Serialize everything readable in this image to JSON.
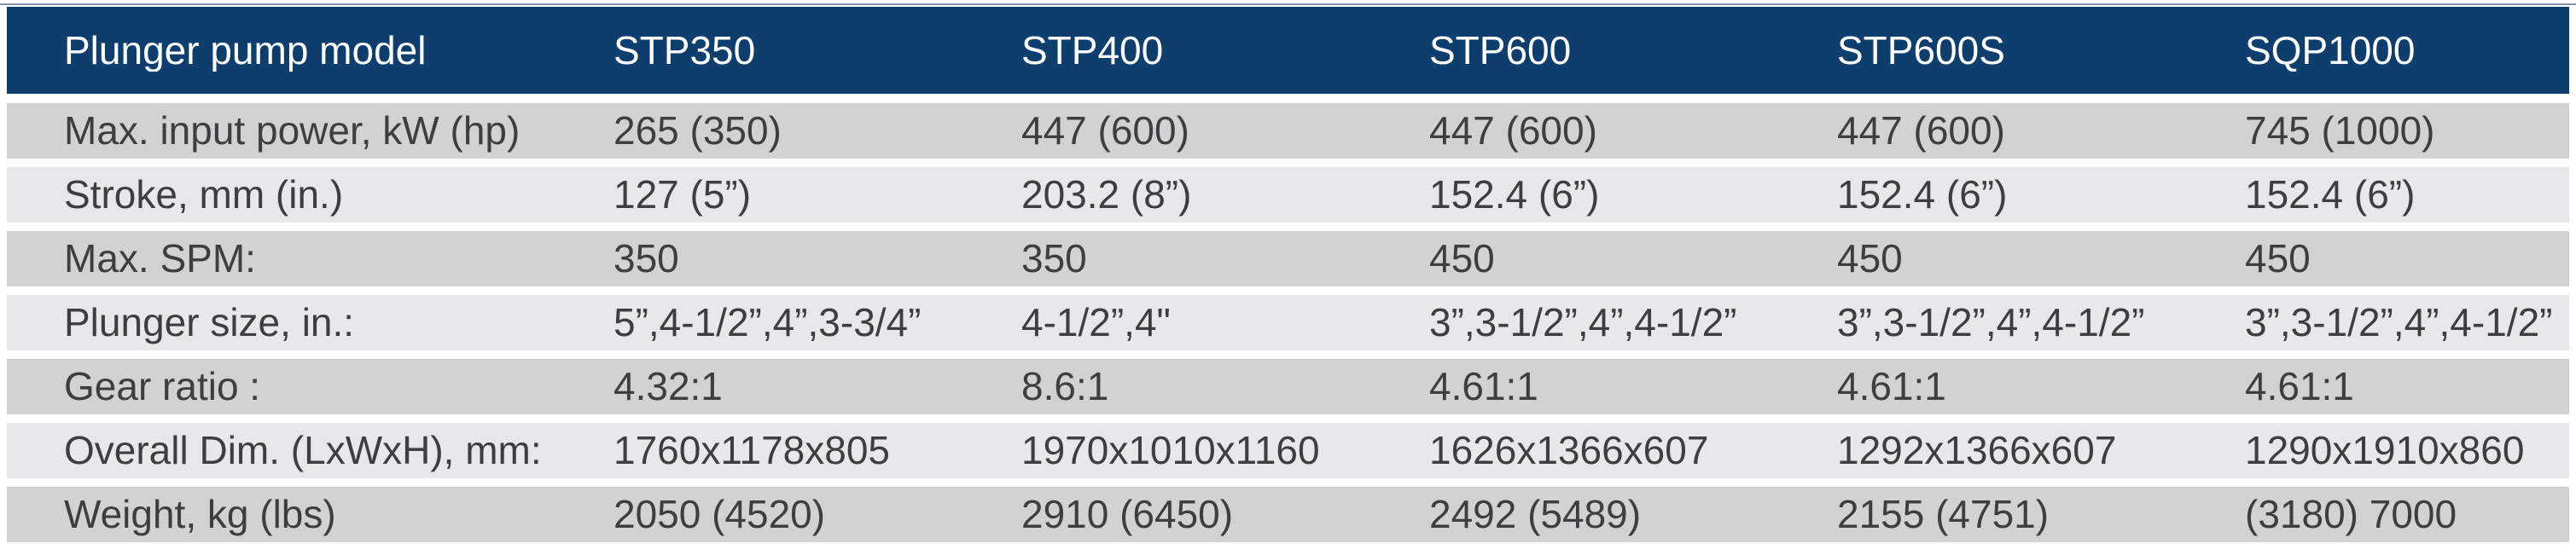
{
  "table": {
    "header": {
      "label": "Plunger pump model",
      "models": [
        "STP350",
        "STP400",
        "STP600",
        "STP600S",
        "SQP1000"
      ]
    },
    "rows": [
      {
        "label": "Max. input power, kW (hp)",
        "values": [
          "265 (350)",
          "447 (600)",
          "447 (600)",
          "447 (600)",
          "745 (1000)"
        ]
      },
      {
        "label": "Stroke, mm (in.)",
        "values": [
          "127 (5”)",
          "203.2 (8”)",
          "152.4 (6”)",
          "152.4 (6”)",
          "152.4 (6”)"
        ]
      },
      {
        "label": "Max. SPM:",
        "values": [
          "350",
          "350",
          "450",
          "450",
          "450"
        ]
      },
      {
        "label": "Plunger size, in.:",
        "values": [
          "5”,4-1/2”,4”,3-3/4”",
          "4-1/2”,4\"",
          "3”,3-1/2”,4”,4-1/2”",
          "3”,3-1/2”,4”,4-1/2”",
          "3”,3-1/2”,4”,4-1/2”"
        ]
      },
      {
        "label": "Gear ratio :",
        "values": [
          "4.32:1",
          "8.6:1",
          "4.61:1",
          "4.61:1",
          "4.61:1"
        ]
      },
      {
        "label": "Overall Dim. (LxWxH), mm:",
        "values": [
          "1760x1178x805",
          "1970x1010x1160",
          "1626x1366x607",
          "1292x1366x607",
          "1290x1910x860"
        ]
      },
      {
        "label": "Weight, kg (lbs)",
        "values": [
          "2050 (4520)",
          "2910 (6450)",
          "2492 (5489)",
          "2155 (4751)",
          "(3180) 7000"
        ]
      }
    ]
  },
  "colors": {
    "header_bg": "#0e3e6e",
    "header_text": "#ffffff",
    "row_dark": "#d2d2d3",
    "row_light": "#e8e8ea",
    "cell_text": "#3e3e40",
    "top_line": "#8b94ae"
  }
}
